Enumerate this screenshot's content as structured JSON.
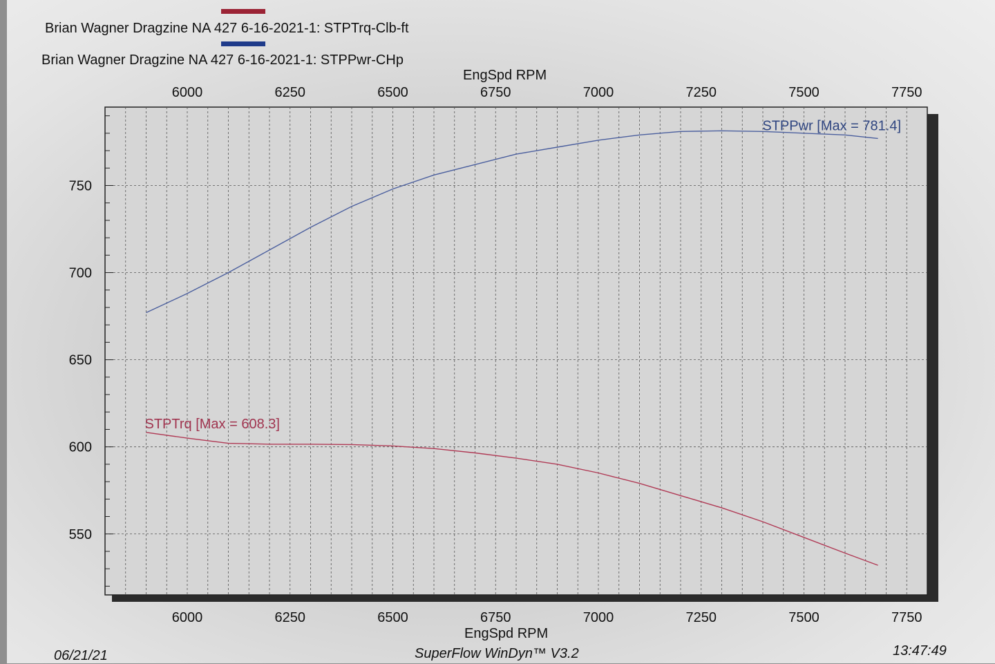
{
  "legend": [
    {
      "label": "Brian Wagner Dragzine NA 427 6-16-2021-1: STPTrq-Clb-ft",
      "color": "#9b2335"
    },
    {
      "label": "Brian Wagner Dragzine NA 427 6-16-2021-1: STPPwr-CHp",
      "color": "#1f3b8a"
    }
  ],
  "footer": {
    "date": "06/21/21",
    "software": "SuperFlow WinDyn™ V3.2",
    "time": "13:47:49"
  },
  "chart_data": {
    "type": "line",
    "xlabel_top": "EngSpd RPM",
    "xlabel_bottom": "EngSpd RPM",
    "xlim": [
      5800,
      7800
    ],
    "ylim": [
      515,
      795
    ],
    "x_ticks": [
      6000,
      6250,
      6500,
      6750,
      7000,
      7250,
      7500,
      7750
    ],
    "y_ticks": [
      550,
      600,
      650,
      700,
      750
    ],
    "grid": true,
    "series": [
      {
        "name": "STPPwr",
        "annotation": "STPPwr [Max = 781.4]",
        "color": "#4b5f9e",
        "x": [
          5900,
          6000,
          6100,
          6200,
          6300,
          6400,
          6500,
          6600,
          6700,
          6800,
          6900,
          7000,
          7100,
          7200,
          7300,
          7400,
          7500,
          7600,
          7680
        ],
        "y": [
          677,
          688,
          700,
          713,
          726,
          738,
          748,
          756,
          762,
          768,
          772,
          776,
          779,
          781,
          781.4,
          781,
          780,
          779,
          777
        ]
      },
      {
        "name": "STPTrq",
        "annotation": "STPTrq [Max = 608.3]",
        "color": "#b03a55",
        "x": [
          5900,
          6000,
          6100,
          6200,
          6300,
          6400,
          6500,
          6600,
          6700,
          6800,
          6900,
          7000,
          7100,
          7200,
          7300,
          7400,
          7500,
          7600,
          7680
        ],
        "y": [
          608.3,
          605,
          602,
          601.5,
          601.5,
          601.3,
          600.5,
          599,
          596.5,
          593.5,
          590,
          585,
          579,
          572,
          565,
          557,
          548,
          539,
          532
        ]
      }
    ]
  }
}
